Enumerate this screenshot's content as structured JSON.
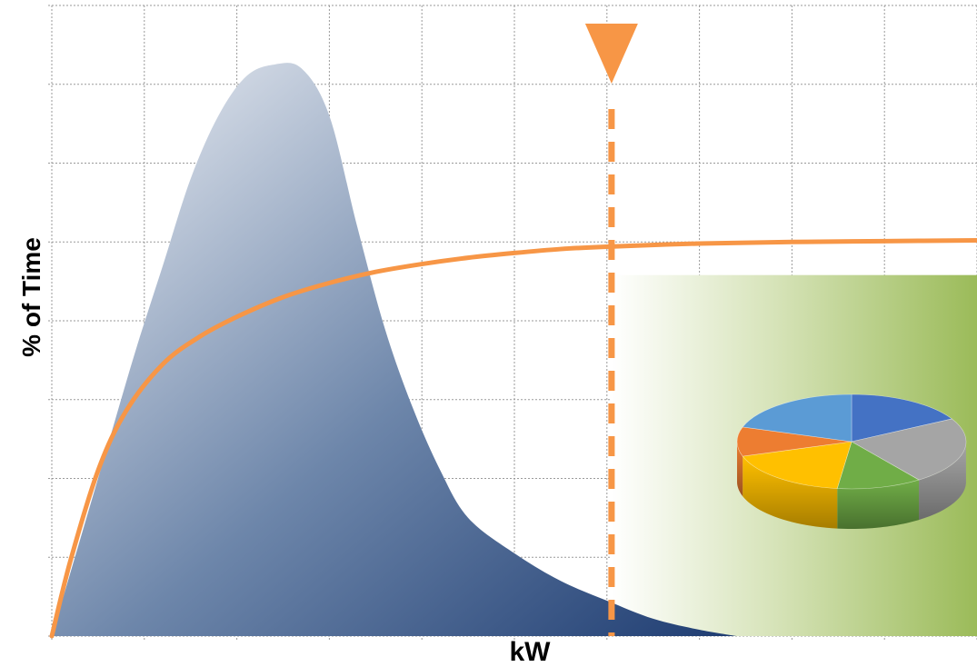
{
  "chart_data": {
    "type": "area",
    "title": "",
    "xlabel": "kW",
    "ylabel": "% of Time",
    "grid": true,
    "legend": "none",
    "tick_labels_shown": false,
    "xlim": [
      0,
      10
    ],
    "ylim": [
      0,
      8
    ],
    "x_gridlines": 10,
    "y_gridlines": 8,
    "series": [
      {
        "kind": "distribution-area",
        "points": [
          [
            0,
            0
          ],
          [
            0.3,
            1.2
          ],
          [
            0.6,
            2.4
          ],
          [
            0.9,
            3.6
          ],
          [
            1.2,
            4.7
          ],
          [
            1.5,
            5.8
          ],
          [
            1.8,
            6.6
          ],
          [
            2.1,
            7.1
          ],
          [
            2.4,
            7.25
          ],
          [
            2.7,
            7.2
          ],
          [
            3.0,
            6.6
          ],
          [
            3.3,
            5.2
          ],
          [
            3.6,
            3.9
          ],
          [
            3.9,
            2.9
          ],
          [
            4.2,
            2.1
          ],
          [
            4.5,
            1.5
          ],
          [
            5.0,
            1.05
          ],
          [
            5.5,
            0.7
          ],
          [
            6.0,
            0.45
          ],
          [
            6.5,
            0.22
          ],
          [
            7.0,
            0.08
          ],
          [
            7.4,
            0.0
          ]
        ]
      },
      {
        "kind": "cumulative-line",
        "points": [
          [
            0,
            0
          ],
          [
            0.2,
            0.95
          ],
          [
            0.5,
            2.1
          ],
          [
            0.8,
            2.85
          ],
          [
            1.2,
            3.45
          ],
          [
            1.6,
            3.8
          ],
          [
            2.0,
            4.05
          ],
          [
            2.5,
            4.3
          ],
          [
            3.0,
            4.48
          ],
          [
            3.5,
            4.62
          ],
          [
            4.0,
            4.72
          ],
          [
            4.5,
            4.8
          ],
          [
            5.0,
            4.86
          ],
          [
            5.5,
            4.91
          ],
          [
            6.0,
            4.94
          ],
          [
            7.0,
            4.98
          ],
          [
            8.0,
            5.0
          ],
          [
            9.0,
            5.01
          ],
          [
            10.0,
            5.02
          ]
        ]
      }
    ],
    "threshold_x": 6.05,
    "shaded_region": {
      "x_from": 6.05,
      "x_to": 10,
      "y_from": 0,
      "y_to": 4.58
    }
  },
  "style": {
    "area_color_light": "#e8ecf2",
    "area_color_dark": "#1f3d72",
    "line_color": "#f79646",
    "region_color": "#9bbb59",
    "grid_color": "#9a9a9a",
    "pie_colors": [
      "#4472c4",
      "#a5a5a5",
      "#70ad47",
      "#ffc000",
      "#ed7d31",
      "#5b9bd5"
    ]
  }
}
